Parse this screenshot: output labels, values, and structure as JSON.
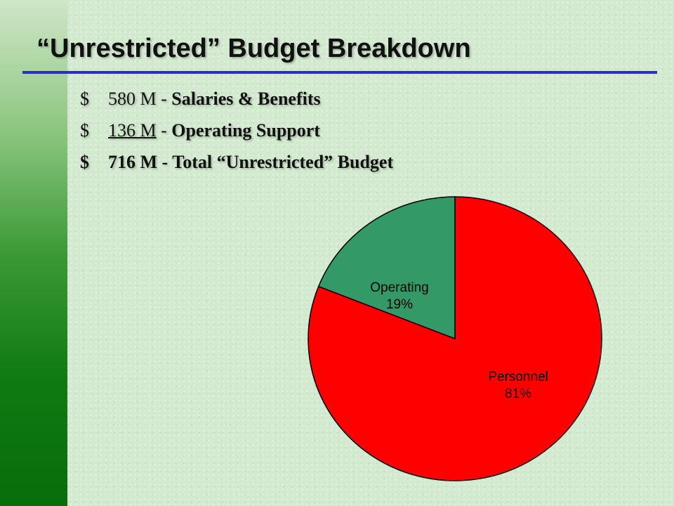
{
  "slide": {
    "title": "“Unrestricted” Budget Breakdown",
    "lines": [
      {
        "dollar": "$",
        "amount": "580 M",
        "sep": " - ",
        "desc": "Salaries & Benefits"
      },
      {
        "dollar": "$",
        "amount": "136 M",
        "sep": " - ",
        "desc": "Operating Support"
      },
      {
        "dollar": "$",
        "amount": "716 M",
        "sep": " - ",
        "desc": "Total “Unrestricted” Budget"
      }
    ]
  },
  "colors": {
    "personnel": "#ff0000",
    "operating": "#339966",
    "title_rule": "#2b2ec2",
    "sidebar": "#0f7a12"
  },
  "chart_data": {
    "type": "pie",
    "title": "",
    "slices": [
      {
        "label": "Operating",
        "value": 19,
        "value_label": "19%",
        "color": "#339966"
      },
      {
        "label": "Personnel",
        "value": 81,
        "value_label": "81%",
        "color": "#ff0000"
      }
    ]
  }
}
